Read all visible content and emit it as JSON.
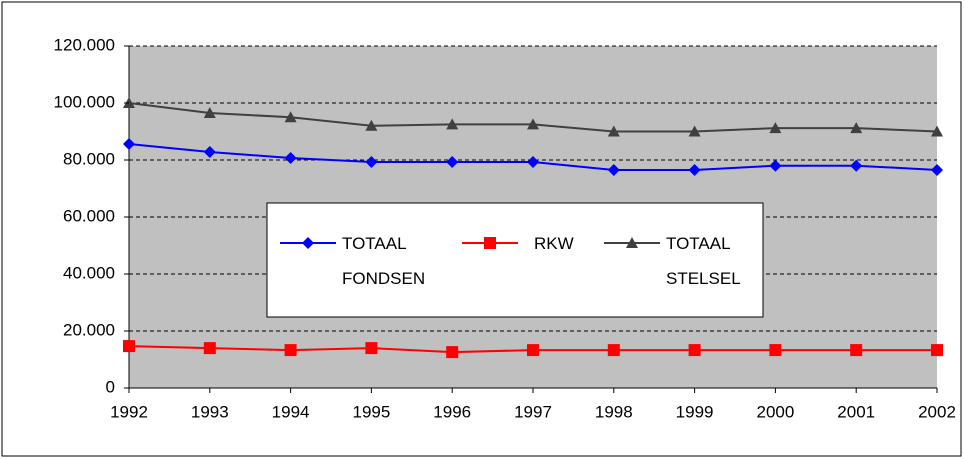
{
  "chart_data": {
    "type": "line",
    "categories": [
      "1992",
      "1993",
      "1994",
      "1995",
      "1996",
      "1997",
      "1998",
      "1999",
      "2000",
      "2001",
      "2002"
    ],
    "series": [
      {
        "name": "TOTAAL FONDSEN",
        "color": "#0000ff",
        "marker": "diamond",
        "values": [
          85600,
          82800,
          80700,
          79300,
          79300,
          79300,
          76500,
          76500,
          78000,
          78000,
          76500
        ]
      },
      {
        "name": "RKW",
        "color": "#ff0000",
        "marker": "square",
        "values": [
          14700,
          14000,
          13300,
          14000,
          12600,
          13300,
          13300,
          13300,
          13300,
          13300,
          13300
        ]
      },
      {
        "name": "TOTAAL STELSEL",
        "color": "#404040",
        "marker": "triangle",
        "values": [
          100000,
          96500,
          95000,
          92000,
          92500,
          92500,
          90000,
          90000,
          91200,
          91200,
          90000
        ]
      }
    ],
    "ylim": [
      0,
      120000
    ],
    "yticks": [
      0,
      {
        "value": 20000,
        "label": "20.000"
      },
      {
        "value": 40000,
        "label": "40.000"
      },
      {
        "value": 60000,
        "label": "60.000"
      },
      {
        "value": 80000,
        "label": "80.000"
      },
      {
        "value": 100000,
        "label": "100.000"
      },
      {
        "value": 120000,
        "label": "120.000"
      }
    ],
    "grid": true
  }
}
